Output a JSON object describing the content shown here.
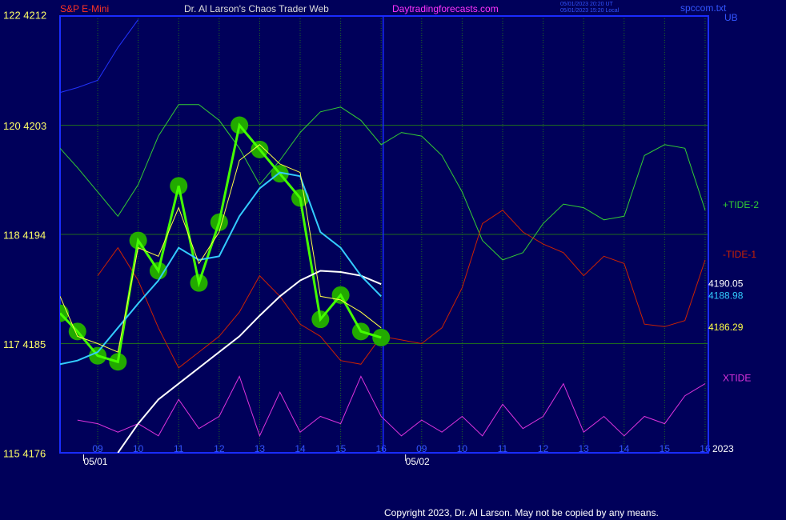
{
  "header": {
    "instrument": "S&P E-Mini",
    "site_title": "Dr. Al Larson's Chaos Trader Web",
    "site_url": "Daytradingforecasts.com",
    "stamp_ut": "05/01/2023 20:20 UT",
    "stamp_local": "05/01/2023 15:20 Local",
    "file": "spccom.txt",
    "corner": "UB",
    "year": "2023"
  },
  "footer": {
    "copyright": "Copyright 2023, Dr. Al Larson. May not be copied by any means."
  },
  "chart_data": {
    "type": "line",
    "grid": true,
    "background": "#00005a",
    "axis_color": "#1a2cff",
    "xlim": [
      0.07,
      16.08
    ],
    "ylim": [
      4176,
      4212
    ],
    "yticks": [
      {
        "value": 4212,
        "label": "122  4212"
      },
      {
        "value": 4203,
        "label": "120  4203"
      },
      {
        "value": 4194,
        "label": "118  4194"
      },
      {
        "value": 4185,
        "label": "117  4185"
      },
      {
        "value": 4176,
        "label": "115  4176"
      }
    ],
    "xticks": [
      {
        "value": 1,
        "label": "09"
      },
      {
        "value": 2,
        "label": "10"
      },
      {
        "value": 3,
        "label": "11"
      },
      {
        "value": 4,
        "label": "12"
      },
      {
        "value": 5,
        "label": "13"
      },
      {
        "value": 6,
        "label": "14"
      },
      {
        "value": 7,
        "label": "15"
      },
      {
        "value": 8,
        "label": "16"
      },
      {
        "value": 9,
        "label": "09"
      },
      {
        "value": 10,
        "label": "10"
      },
      {
        "value": 11,
        "label": "11"
      },
      {
        "value": 12,
        "label": "12"
      },
      {
        "value": 13,
        "label": "13"
      },
      {
        "value": 14,
        "label": "14"
      },
      {
        "value": 15,
        "label": "15"
      },
      {
        "value": 16,
        "label": "16"
      }
    ],
    "date_ticks": [
      {
        "value": 0.85,
        "label": "05/01"
      },
      {
        "value": 8.8,
        "label": "05/02"
      }
    ],
    "day_break": 8.05,
    "series": [
      {
        "color": "#2233ff",
        "x": [
          0.07,
          0.5,
          1,
          1.5,
          2
        ],
        "values": [
          4205.7,
          4206.1,
          4206.7,
          4209.4,
          4211.7
        ]
      },
      {
        "name": "+TIDE-2",
        "color": "#33cc33",
        "x": [
          0.07,
          0.5,
          1,
          1.5,
          2,
          2.5,
          3,
          3.5,
          4,
          4.5,
          5,
          5.5,
          6,
          6.5,
          7,
          7.5,
          8,
          8.5,
          9,
          9.5,
          10,
          10.5,
          11,
          11.5,
          12,
          12.5,
          13,
          13.5,
          14,
          14.5,
          15,
          15.5,
          16
        ],
        "values": [
          4201.1,
          4199.5,
          4197.5,
          4195.5,
          4198.1,
          4202.1,
          4204.7,
          4204.7,
          4203.4,
          4201.1,
          4198.1,
          4200.1,
          4202.4,
          4204.1,
          4204.5,
          4203.4,
          4201.4,
          4202.4,
          4202.1,
          4200.5,
          4197.5,
          4193.5,
          4191.9,
          4192.5,
          4194.9,
          4196.5,
          4196.2,
          4195.2,
          4195.5,
          4200.5,
          4201.4,
          4201.1,
          4196.0
        ]
      },
      {
        "name": "-TIDE-1",
        "color": "#cc2200",
        "x": [
          1,
          1.5,
          2,
          2.5,
          3,
          3.5,
          4,
          4.5,
          5,
          5.5,
          6,
          6.5,
          7,
          7.5,
          8,
          8.5,
          9,
          9.5,
          10,
          10.5,
          11,
          11.5,
          12,
          12.5,
          13,
          13.5,
          14,
          14.5,
          15,
          15.5,
          16
        ],
        "values": [
          4190.6,
          4192.9,
          4190.2,
          4186.3,
          4183.0,
          4184.3,
          4185.6,
          4187.6,
          4190.6,
          4188.9,
          4186.6,
          4185.6,
          4183.6,
          4183.3,
          4185.6,
          4185.3,
          4185.0,
          4186.3,
          4189.6,
          4194.9,
          4196.0,
          4194.2,
          4193.2,
          4192.5,
          4190.6,
          4192.2,
          4191.6,
          4186.6,
          4186.4,
          4186.9,
          4191.9
        ]
      },
      {
        "name": "XTIDE",
        "color": "#dd33dd",
        "x": [
          0.5,
          1,
          1.5,
          2,
          2.5,
          3,
          3.5,
          4,
          4.5,
          5,
          5.5,
          6,
          6.5,
          7,
          7.5,
          8,
          8.5,
          9,
          9.5,
          10,
          10.5,
          11,
          11.5,
          12,
          12.5,
          13,
          13.5,
          14,
          14.5,
          15,
          15.5,
          16
        ],
        "values": [
          4178.7,
          4178.4,
          4177.7,
          4178.4,
          4177.4,
          4180.4,
          4178.0,
          4179.0,
          4182.3,
          4177.4,
          4181.0,
          4177.7,
          4179.0,
          4178.4,
          4182.3,
          4179.0,
          4177.4,
          4178.7,
          4177.7,
          4179.0,
          4177.4,
          4180.0,
          4178.0,
          4179.0,
          4181.7,
          4177.7,
          4179.0,
          4177.4,
          4179.0,
          4178.4,
          4180.7,
          4181.7
        ]
      },
      {
        "color": "#22aa00",
        "price": true,
        "x": [
          0.07,
          0.5,
          1,
          1.5,
          2,
          2.5,
          3,
          3.5,
          4,
          4.5,
          5,
          5.5,
          6,
          6.5,
          7,
          7.5,
          8
        ],
        "values": [
          4187.5,
          4186.0,
          4184.0,
          4183.5,
          4193.5,
          4191.0,
          4198.0,
          4190.0,
          4195.0,
          4203.0,
          4201.0,
          4199.0,
          4197.0,
          4187.0,
          4189.0,
          4186.0,
          4185.5
        ]
      },
      {
        "color": "#ffffff",
        "end_label": "4190.05",
        "x": [
          1.5,
          2,
          2.5,
          3,
          3.5,
          4,
          4.5,
          5,
          5.5,
          6,
          6.5,
          7,
          7.5,
          8
        ],
        "values": [
          4176.0,
          4178.4,
          4180.4,
          4181.7,
          4183.0,
          4184.3,
          4185.6,
          4187.3,
          4188.9,
          4190.2,
          4191.0,
          4190.9,
          4190.6,
          4189.9
        ]
      },
      {
        "color": "#33ccff",
        "end_label": "4188.98",
        "x": [
          0.07,
          0.5,
          1,
          1.5,
          2,
          2.5,
          3,
          3.5,
          4,
          4.5,
          5,
          5.5,
          6,
          6.5,
          7,
          7.5,
          8
        ],
        "values": [
          4183.3,
          4183.6,
          4184.3,
          4186.3,
          4188.3,
          4190.2,
          4192.9,
          4191.9,
          4192.2,
          4195.5,
          4197.8,
          4199.1,
          4198.8,
          4194.2,
          4192.9,
          4190.6,
          4188.9
        ]
      },
      {
        "color": "#ffff44",
        "end_label": "4186.29",
        "x": [
          0.07,
          0.5,
          1,
          1.5,
          2,
          2.5,
          3,
          3.5,
          4,
          4.5,
          5,
          5.5,
          6,
          6.5,
          7,
          7.5,
          8
        ],
        "values": [
          4188.9,
          4185.6,
          4185.0,
          4184.3,
          4192.9,
          4192.2,
          4196.2,
          4191.6,
          4194.2,
          4200.1,
          4201.4,
          4199.8,
          4199.1,
          4188.9,
          4188.6,
          4187.6,
          4186.3
        ]
      }
    ]
  }
}
